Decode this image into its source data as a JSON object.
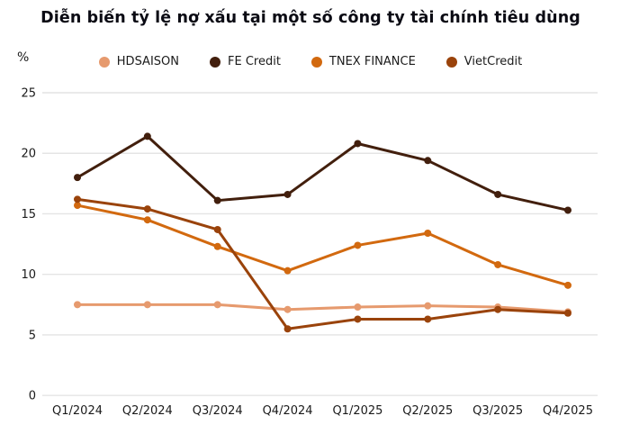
{
  "title": "Diễn biến tỷ lệ nợ xấu tại một số công ty tài chính tiêu dùng",
  "colors": {
    "background": "#ffffff",
    "grid": "#e4e4e4",
    "tick_text": "#1a1a1a",
    "title_text": "#0b0b14"
  },
  "chart_data": {
    "type": "line",
    "title": "Diễn biến tỷ lệ nợ xấu tại một số công ty tài chính tiêu dùng",
    "ylabel": "%",
    "xlabel": "",
    "categories": [
      "Q1/2024",
      "Q2/2024",
      "Q3/2024",
      "Q4/2024",
      "Q1/2025",
      "Q2/2025",
      "Q3/2025",
      "Q4/2025"
    ],
    "series": [
      {
        "name": "HDSAISON",
        "color": "#E69A6E",
        "values": [
          7.5,
          7.5,
          7.5,
          7.1,
          7.3,
          7.4,
          7.3,
          6.9
        ]
      },
      {
        "name": "FE Credit",
        "color": "#421F0D",
        "values": [
          18.0,
          21.4,
          16.1,
          16.6,
          20.8,
          19.4,
          16.6,
          15.3
        ]
      },
      {
        "name": "TNEX FINANCE",
        "color": "#D2690F",
        "values": [
          15.7,
          14.5,
          12.3,
          10.3,
          12.4,
          13.4,
          10.8,
          9.1
        ]
      },
      {
        "name": "VietCredit",
        "color": "#9A430B",
        "values": [
          16.2,
          15.4,
          13.7,
          5.5,
          6.3,
          6.3,
          7.1,
          6.8
        ]
      }
    ],
    "ylim": [
      0,
      25
    ],
    "y_ticks": [
      0,
      5,
      10,
      15,
      20,
      25
    ],
    "grid": "horizontal",
    "legend_position": "top"
  }
}
